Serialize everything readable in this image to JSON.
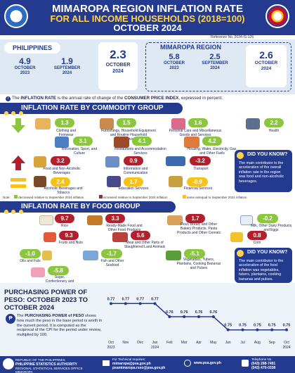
{
  "header": {
    "title": "MIMAROPA REGION INFLATION RATE",
    "subtitle": "FOR ALL INCOME HOUSEHOLDS (2018=100)",
    "period": "OCTOBER 2024",
    "reference": "Reference No. 2024-IS-126"
  },
  "philippines": {
    "label": "PHILIPPINES",
    "items": [
      {
        "value": "4.9",
        "label1": "OCTOBER",
        "label2": "2023"
      },
      {
        "value": "1.9",
        "label1": "SEPTEMBER",
        "label2": "2024"
      },
      {
        "value": "2.3",
        "label1": "OCTOBER",
        "label2": "2024"
      }
    ]
  },
  "mimaropa": {
    "label": "MIMAROPA REGION",
    "items": [
      {
        "value": "5.8",
        "label1": "OCTOBER",
        "label2": "2023"
      },
      {
        "value": "2.5",
        "label1": "SEPTEMBER",
        "label2": "2024"
      },
      {
        "value": "2.6",
        "label1": "OCTOBER",
        "label2": "2024"
      }
    ]
  },
  "definition": {
    "pre": "The ",
    "term": "INFLATION RATE",
    "mid": " is the annual rate of change of the ",
    "term2": "CONSUMER PRICE INDEX",
    "post": ", expressed in percent."
  },
  "commodity": {
    "title": "INFLATION RATE BY COMMODITY GROUP",
    "items": [
      {
        "value": "1.3",
        "label": "Clothing and Footwear",
        "trend": "down"
      },
      {
        "value": "1.5",
        "label": "Furnishings, Household Equipment and Routine Household Maintenance",
        "trend": "down"
      },
      {
        "value": "1.6",
        "label": "Personal Care and Miscellaneous Goods and Services",
        "trend": "down"
      },
      {
        "value": "2.2",
        "label": "Health",
        "trend": "down"
      },
      {
        "value": "3.1",
        "label": "Recreation, Sport, and Culture",
        "trend": "down"
      },
      {
        "value": "4.1",
        "label": "Restaurants and Accommodation Services",
        "trend": "down"
      },
      {
        "value": "4.2",
        "label": "Housing, Water, Electricity, Gas, and Other Fuels",
        "trend": "down"
      },
      {
        "value": "3.2",
        "label": "Food and Non-Alcoholic Beverages",
        "trend": "up"
      },
      {
        "value": "0.9",
        "label": "Information and Communication",
        "trend": "up"
      },
      {
        "value": "-3.2",
        "label": "Transport",
        "trend": "up"
      },
      {
        "value": "2.4",
        "label": "Alcoholic Beverages and Tobacco",
        "trend": "same"
      },
      {
        "value": "1.7",
        "label": "Education Services",
        "trend": "same"
      },
      {
        "value": "-0.9",
        "label": "Financial Services",
        "trend": "same"
      }
    ],
    "dyk_title": "DID YOU KNOW?",
    "dyk_text": "The main contributor to the acceleration of the overall inflation rate in the region was food and non-alcoholic beverages.",
    "legend": {
      "note": "Note:",
      "down": "decreased relative to September 2024 inflation",
      "up": "increased relative to September 2024 inflation",
      "same": "same as/equal to September 2024 inflation"
    }
  },
  "food": {
    "title": "INFLATION RATE BY FOOD GROUP",
    "items": [
      {
        "value": "9.7",
        "label": "Rice"
      },
      {
        "value": "3.3",
        "label": "Ready-Made Food and Other Food Products n.e.c."
      },
      {
        "value": "1.7",
        "label": "Flour, Bread, and Other Bakery Products, Pasta Products and Other Cereals"
      },
      {
        "value": "-0.2",
        "label": "Milk, Other Dairy Products and Eggs"
      },
      {
        "value": "9.3",
        "label": "Fruits and Nuts"
      },
      {
        "value": "5.6",
        "label": "Meat and Other Parts of Slaughtered Land Animals"
      },
      {
        "value": "0.8",
        "label": "Corn"
      },
      {
        "value": "-1.0",
        "label": "Oils and Fats"
      },
      {
        "value": "-1.7",
        "label": "Fish and Other Seafood"
      },
      {
        "value": "-5.1",
        "label": "Vegetables, Tubers, Plantains, Cooking Bananas and Pulses"
      },
      {
        "value": "-5.8",
        "label": "Sugar, Confectionery and Desserts"
      }
    ],
    "dyk_title": "DID YOU KNOW?",
    "dyk_text": "The main contributor to the acceleration of the food inflation was vegetables, tubers, plantains, cooking bananas and pulses."
  },
  "purchasing": {
    "title_line1": "PURCHASING POWER OF",
    "title_line2": "PESO: OCTOBER 2023 TO",
    "title_line3": "OCTOBER 2024",
    "body_pre": "The ",
    "body_term": "PURCHASING POWER of PESO",
    "body_post": " shows how much the peso in the base period is worth in the current period. It is computed as the reciprocal of the CPI for the period under review, multiplied by 100."
  },
  "chart_data": {
    "type": "line",
    "categories": [
      "Oct 2023",
      "Nov",
      "Dec",
      "Jan 2024",
      "Feb",
      "Mar",
      "Apr",
      "May",
      "Jun",
      "Jul",
      "Aug",
      "Sep",
      "Oct 2024"
    ],
    "tick_top": [
      "Oct",
      "Nov",
      "Dec",
      "Jan",
      "Feb",
      "Mar",
      "Apr",
      "May",
      "Jun",
      "Jul",
      "Aug",
      "Sep",
      "Oct"
    ],
    "tick_bottom": [
      "2023",
      "",
      "",
      "2024",
      "",
      "",
      "",
      "",
      "",
      "",
      "",
      "",
      "2024"
    ],
    "values": [
      0.77,
      0.77,
      0.77,
      0.77,
      0.76,
      0.76,
      0.76,
      0.76,
      0.75,
      0.75,
      0.75,
      0.75,
      0.75
    ],
    "labels": [
      "0.77",
      "0.77",
      "0.77",
      "0.77",
      "0.76",
      "0.76",
      "0.76",
      "0.76",
      "0.75",
      "0.75",
      "0.75",
      "0.75",
      "0.75"
    ],
    "ylim": [
      0.745,
      0.775
    ],
    "color": "#233a8f"
  },
  "footer": {
    "org1": "REPUBLIC OF THE PHILIPPINES",
    "org2": "PHILIPPINE STATISTICS AUTHORITY",
    "org3": "REGIONAL STATISTICAL SERVICES OFFICE MIMAROPA",
    "tech": "For Technical Inquiries:",
    "email1": "mimaropa@psa.gov.ph",
    "email2": "psamimaropa.rsso@psa.gov.ph",
    "web": "www.psa.gov.ph",
    "tel_label": "Telephone No.",
    "tel1": "(043) 288-7491",
    "tel2": "(043) 470-0338"
  }
}
